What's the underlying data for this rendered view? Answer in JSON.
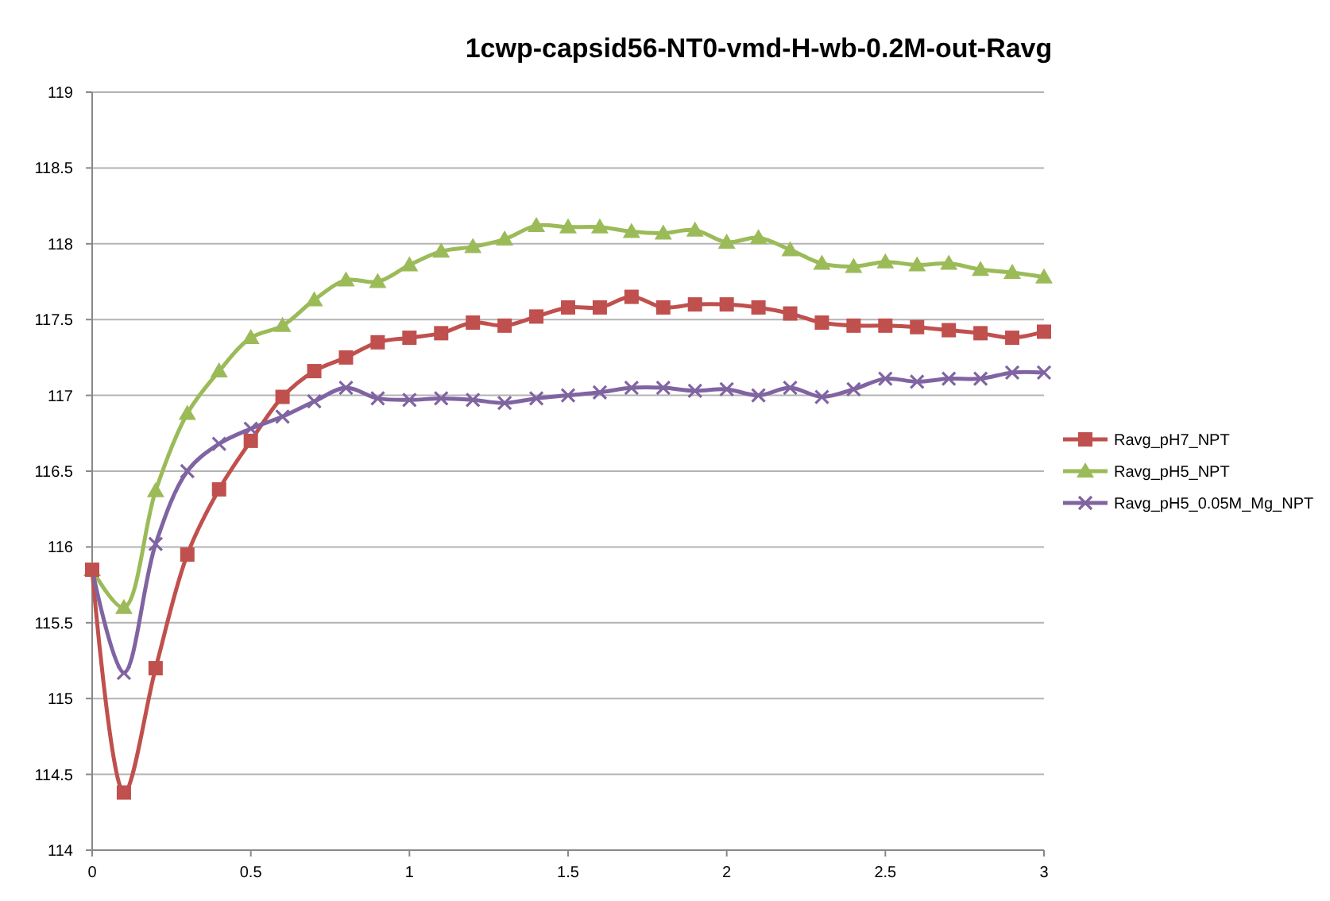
{
  "chart_data": {
    "type": "line",
    "title": "1cwp-capsid56-NT0-vmd-H-wb-0.2M-out-Ravg",
    "x": [
      0,
      0.1,
      0.2,
      0.3,
      0.4,
      0.5,
      0.6,
      0.7,
      0.8,
      0.9,
      1,
      1.1,
      1.2,
      1.3,
      1.4,
      1.5,
      1.6,
      1.7,
      1.8,
      1.9,
      2,
      2.1,
      2.2,
      2.3,
      2.4,
      2.5,
      2.6,
      2.7,
      2.8,
      2.9,
      3
    ],
    "series": [
      {
        "name": "Ravg_pH7_NPT",
        "color": "#c0504d",
        "marker": "square",
        "values": [
          115.85,
          114.38,
          115.2,
          115.95,
          116.38,
          116.7,
          116.99,
          117.16,
          117.25,
          117.35,
          117.38,
          117.41,
          117.48,
          117.46,
          117.52,
          117.58,
          117.58,
          117.65,
          117.58,
          117.6,
          117.6,
          117.58,
          117.54,
          117.48,
          117.46,
          117.46,
          117.45,
          117.43,
          117.41,
          117.38,
          117.42
        ]
      },
      {
        "name": "Ravg_pH5_NPT",
        "color": "#9bbb59",
        "marker": "triangle",
        "values": [
          115.85,
          115.6,
          116.37,
          116.88,
          117.16,
          117.38,
          117.46,
          117.63,
          117.76,
          117.75,
          117.86,
          117.95,
          117.98,
          118.03,
          118.12,
          118.11,
          118.11,
          118.08,
          118.07,
          118.09,
          118.01,
          118.04,
          117.96,
          117.87,
          117.85,
          117.88,
          117.86,
          117.87,
          117.83,
          117.81,
          117.78
        ]
      },
      {
        "name": "Ravg_pH5_0.05M_Mg_NPT",
        "color": "#8064a2",
        "marker": "cross",
        "values": [
          115.85,
          115.17,
          116.02,
          116.5,
          116.68,
          116.78,
          116.86,
          116.96,
          117.05,
          116.98,
          116.97,
          116.98,
          116.97,
          116.95,
          116.98,
          117.0,
          117.02,
          117.05,
          117.05,
          117.03,
          117.04,
          117.0,
          117.05,
          116.99,
          117.04,
          117.11,
          117.09,
          117.11,
          117.11,
          117.15,
          117.15
        ]
      }
    ],
    "xlim": [
      0,
      3
    ],
    "xticks": [
      0,
      0.5,
      1,
      1.5,
      2,
      2.5,
      3
    ],
    "ylim": [
      114,
      119
    ],
    "yticks": [
      114,
      114.5,
      115,
      115.5,
      116,
      116.5,
      117,
      117.5,
      118,
      118.5,
      119
    ],
    "grid": "y",
    "legend": "right"
  }
}
